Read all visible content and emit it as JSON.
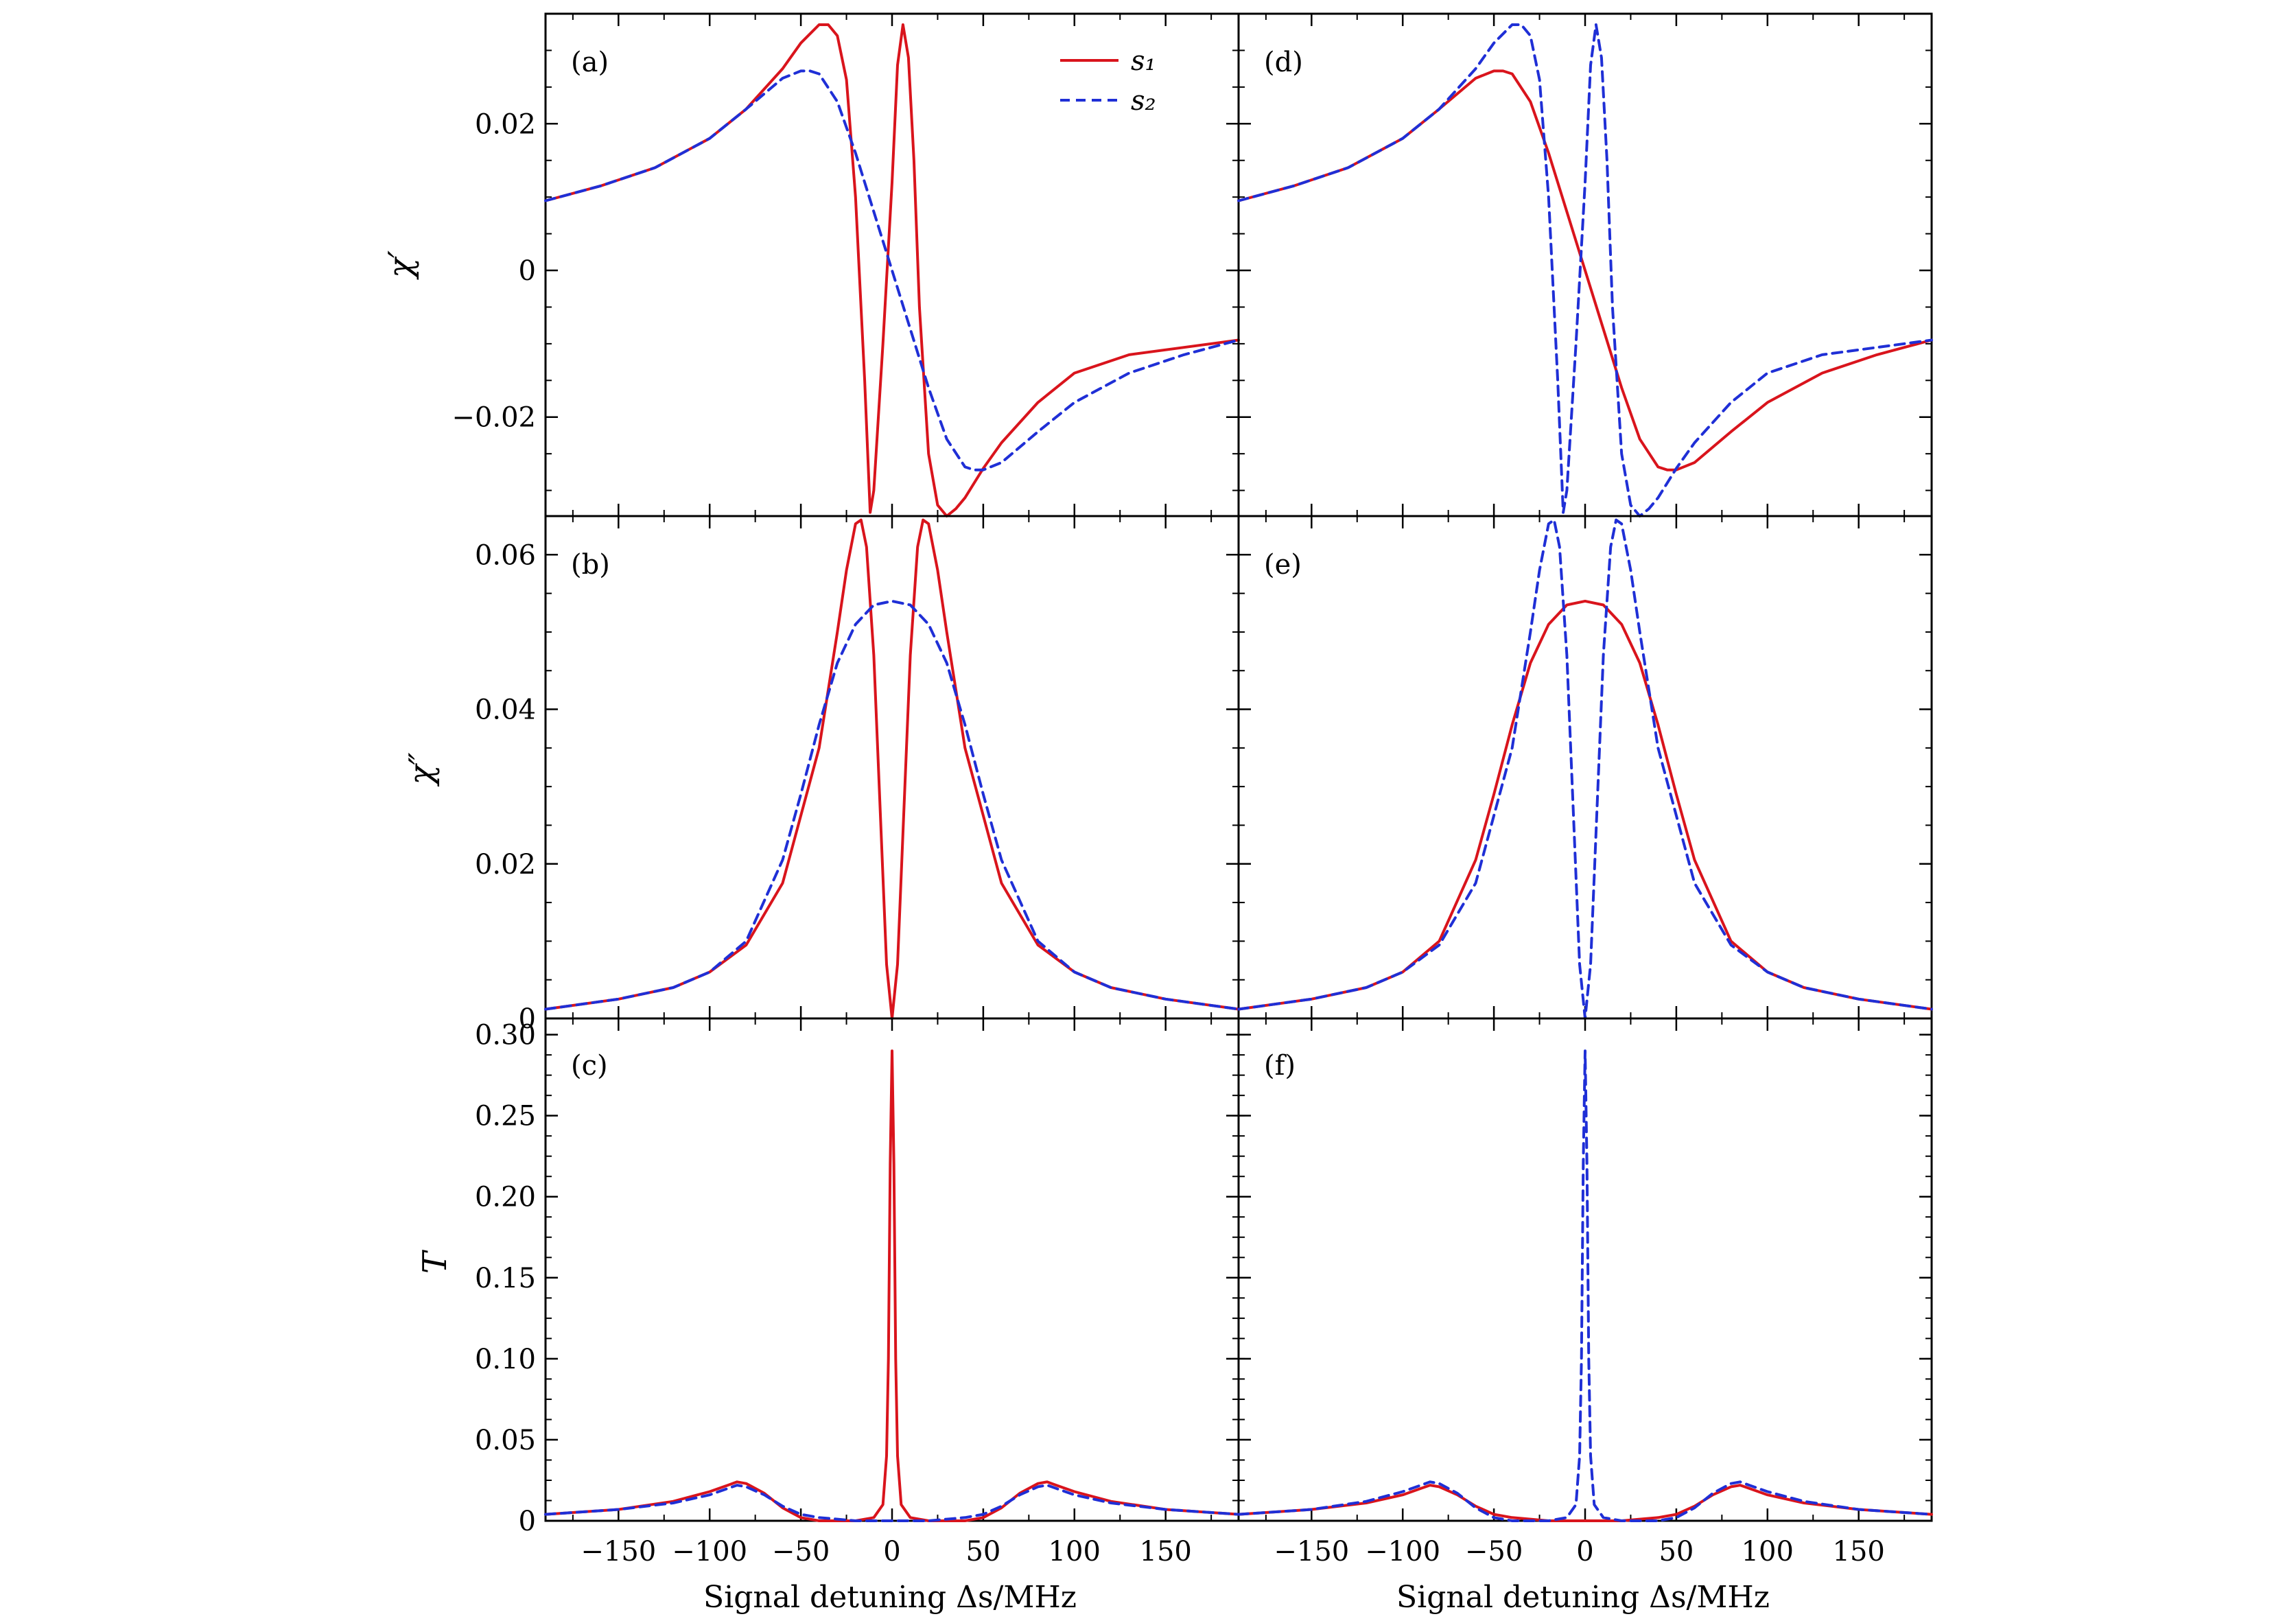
{
  "colors": {
    "s1": "#d9141c",
    "s2": "#1f2fd6",
    "frame": "#000000"
  },
  "legend": {
    "s1_label": "s₁",
    "s2_label": "s₂",
    "placement": "top-right of panel (a)"
  },
  "x_axis": {
    "label": "Signal detuning Δs/MHz",
    "ticks": [
      -150,
      -100,
      -50,
      0,
      50,
      100,
      150
    ],
    "tick_labels": [
      "−150",
      "−100",
      "−50",
      "0",
      "50",
      "100",
      "150"
    ],
    "range": [
      -190,
      190
    ]
  },
  "chart_data": [
    {
      "type": "line",
      "panel": "(a)",
      "ylabel": "χ′",
      "ylim": [
        -0.0335,
        0.035
      ],
      "yticks": [
        -0.02,
        0,
        0.02
      ],
      "ytick_labels": [
        "−0.02",
        "0",
        "0.02"
      ],
      "series": [
        {
          "name": "s₁",
          "style": "solid",
          "x": [
            -190,
            -160,
            -130,
            -100,
            -80,
            -60,
            -50,
            -40,
            -35,
            -30,
            -25,
            -20,
            -15,
            -12,
            -10,
            -5,
            0,
            3,
            6,
            9,
            12,
            15,
            20,
            25,
            30,
            35,
            40,
            50,
            60,
            80,
            100,
            130,
            160,
            190
          ],
          "y": [
            0.0095,
            0.0115,
            0.014,
            0.018,
            0.022,
            0.0275,
            0.031,
            0.0335,
            0.0335,
            0.032,
            0.026,
            0.01,
            -0.015,
            -0.033,
            -0.03,
            -0.01,
            0.012,
            0.028,
            0.0335,
            0.029,
            0.015,
            -0.005,
            -0.025,
            -0.032,
            -0.0335,
            -0.0325,
            -0.031,
            -0.027,
            -0.0235,
            -0.018,
            -0.014,
            -0.0115,
            -0.0105,
            -0.0095
          ]
        },
        {
          "name": "s₂",
          "style": "dashed",
          "x": [
            -190,
            -160,
            -130,
            -100,
            -80,
            -60,
            -50,
            -45,
            -40,
            -30,
            -20,
            -10,
            0,
            10,
            20,
            30,
            40,
            45,
            50,
            60,
            80,
            100,
            130,
            160,
            190
          ],
          "y": [
            0.0095,
            0.0115,
            0.014,
            0.018,
            0.022,
            0.0262,
            0.0272,
            0.0272,
            0.0268,
            0.023,
            0.016,
            0.008,
            0.0,
            -0.008,
            -0.016,
            -0.023,
            -0.0268,
            -0.0272,
            -0.0272,
            -0.0262,
            -0.022,
            -0.018,
            -0.014,
            -0.0115,
            -0.0095
          ]
        }
      ]
    },
    {
      "type": "line",
      "panel": "(b)",
      "ylabel": "χ″",
      "ylim": [
        0,
        0.065
      ],
      "yticks": [
        0,
        0.02,
        0.04,
        0.06
      ],
      "ytick_labels": [
        "0",
        "0.02",
        "0.04",
        "0.06"
      ],
      "series": [
        {
          "name": "s₁",
          "style": "solid",
          "x": [
            -190,
            -150,
            -120,
            -100,
            -80,
            -60,
            -40,
            -30,
            -25,
            -20,
            -17,
            -14,
            -10,
            -6,
            -3,
            0,
            3,
            6,
            10,
            14,
            17,
            20,
            25,
            30,
            40,
            60,
            80,
            100,
            120,
            150,
            190
          ],
          "y": [
            0.0012,
            0.0025,
            0.004,
            0.006,
            0.0095,
            0.0175,
            0.035,
            0.05,
            0.058,
            0.064,
            0.0645,
            0.061,
            0.047,
            0.024,
            0.007,
            0.0,
            0.007,
            0.024,
            0.047,
            0.061,
            0.0645,
            0.064,
            0.058,
            0.05,
            0.035,
            0.0175,
            0.0095,
            0.006,
            0.004,
            0.0025,
            0.0012
          ]
        },
        {
          "name": "s₂",
          "style": "dashed",
          "x": [
            -190,
            -150,
            -120,
            -100,
            -80,
            -60,
            -50,
            -40,
            -30,
            -20,
            -10,
            0,
            10,
            20,
            30,
            40,
            50,
            60,
            80,
            100,
            120,
            150,
            190
          ],
          "y": [
            0.0012,
            0.0025,
            0.004,
            0.006,
            0.01,
            0.0205,
            0.029,
            0.038,
            0.046,
            0.051,
            0.0535,
            0.054,
            0.0535,
            0.051,
            0.046,
            0.038,
            0.029,
            0.0205,
            0.01,
            0.006,
            0.004,
            0.0025,
            0.0012
          ]
        }
      ]
    },
    {
      "type": "line",
      "panel": "(c)",
      "ylabel": "T",
      "ylim": [
        0,
        0.31
      ],
      "yticks": [
        0,
        0.05,
        0.1,
        0.15,
        0.2,
        0.25,
        0.3
      ],
      "ytick_labels": [
        "0",
        "0.05",
        "0.10",
        "0.15",
        "0.20",
        "0.25",
        "0.30"
      ],
      "series": [
        {
          "name": "s₁",
          "style": "solid",
          "x": [
            -190,
            -150,
            -120,
            -100,
            -90,
            -85,
            -80,
            -70,
            -60,
            -50,
            -40,
            -30,
            -20,
            -10,
            -5,
            -3,
            -2,
            -1,
            0,
            1,
            2,
            3,
            5,
            10,
            20,
            30,
            40,
            50,
            60,
            70,
            80,
            85,
            90,
            100,
            120,
            150,
            190
          ],
          "y": [
            0.004,
            0.007,
            0.012,
            0.018,
            0.022,
            0.024,
            0.023,
            0.017,
            0.008,
            0.002,
            0.0,
            0.0,
            0.0,
            0.002,
            0.01,
            0.04,
            0.1,
            0.22,
            0.29,
            0.22,
            0.1,
            0.04,
            0.01,
            0.002,
            0.0,
            0.0,
            0.0,
            0.002,
            0.008,
            0.017,
            0.023,
            0.024,
            0.022,
            0.018,
            0.012,
            0.007,
            0.004
          ]
        },
        {
          "name": "s₂",
          "style": "dashed",
          "x": [
            -190,
            -150,
            -120,
            -100,
            -90,
            -85,
            -80,
            -70,
            -60,
            -50,
            -40,
            -30,
            -20,
            -10,
            0,
            10,
            20,
            30,
            40,
            50,
            60,
            70,
            80,
            85,
            90,
            100,
            120,
            150,
            190
          ],
          "y": [
            0.004,
            0.007,
            0.011,
            0.016,
            0.02,
            0.022,
            0.021,
            0.016,
            0.009,
            0.004,
            0.002,
            0.001,
            0.0,
            0.0,
            0.0,
            0.0,
            0.0,
            0.001,
            0.002,
            0.004,
            0.009,
            0.016,
            0.021,
            0.022,
            0.02,
            0.016,
            0.011,
            0.007,
            0.004
          ]
        }
      ]
    },
    {
      "type": "line",
      "panel": "(d)",
      "ylabel": "",
      "ylim": [
        -0.0335,
        0.035
      ],
      "yticks": [
        -0.02,
        0,
        0.02
      ],
      "ytick_labels": [
        "",
        "",
        ""
      ],
      "series": [
        {
          "name": "s₁",
          "style": "solid",
          "x": [
            -190,
            -160,
            -130,
            -100,
            -80,
            -60,
            -50,
            -45,
            -40,
            -30,
            -20,
            -10,
            0,
            10,
            20,
            30,
            40,
            45,
            50,
            60,
            80,
            100,
            130,
            160,
            190
          ],
          "y": [
            0.0095,
            0.0115,
            0.014,
            0.018,
            0.022,
            0.0262,
            0.0272,
            0.0272,
            0.0268,
            0.023,
            0.016,
            0.008,
            0.0,
            -0.008,
            -0.016,
            -0.023,
            -0.0268,
            -0.0272,
            -0.0272,
            -0.0262,
            -0.022,
            -0.018,
            -0.014,
            -0.0115,
            -0.0095
          ]
        },
        {
          "name": "s₂",
          "style": "dashed",
          "x": [
            -190,
            -160,
            -130,
            -100,
            -80,
            -60,
            -50,
            -40,
            -35,
            -30,
            -25,
            -20,
            -15,
            -12,
            -10,
            -5,
            0,
            3,
            6,
            9,
            12,
            15,
            20,
            25,
            30,
            35,
            40,
            50,
            60,
            80,
            100,
            130,
            160,
            190
          ],
          "y": [
            0.0095,
            0.0115,
            0.014,
            0.018,
            0.022,
            0.0275,
            0.031,
            0.0335,
            0.0335,
            0.032,
            0.026,
            0.01,
            -0.015,
            -0.033,
            -0.03,
            -0.01,
            0.012,
            0.028,
            0.0335,
            0.029,
            0.015,
            -0.005,
            -0.025,
            -0.032,
            -0.0335,
            -0.0325,
            -0.031,
            -0.027,
            -0.0235,
            -0.018,
            -0.014,
            -0.0115,
            -0.0105,
            -0.0095
          ]
        }
      ]
    },
    {
      "type": "line",
      "panel": "(e)",
      "ylabel": "",
      "ylim": [
        0,
        0.065
      ],
      "yticks": [
        0,
        0.02,
        0.04,
        0.06
      ],
      "ytick_labels": [
        "",
        "",
        "",
        ""
      ],
      "series": [
        {
          "name": "s₁",
          "style": "solid",
          "x": [
            -190,
            -150,
            -120,
            -100,
            -80,
            -60,
            -50,
            -40,
            -30,
            -20,
            -10,
            0,
            10,
            20,
            30,
            40,
            50,
            60,
            80,
            100,
            120,
            150,
            190
          ],
          "y": [
            0.0012,
            0.0025,
            0.004,
            0.006,
            0.01,
            0.0205,
            0.029,
            0.038,
            0.046,
            0.051,
            0.0535,
            0.054,
            0.0535,
            0.051,
            0.046,
            0.038,
            0.029,
            0.0205,
            0.01,
            0.006,
            0.004,
            0.0025,
            0.0012
          ]
        },
        {
          "name": "s₂",
          "style": "dashed",
          "x": [
            -190,
            -150,
            -120,
            -100,
            -80,
            -60,
            -40,
            -30,
            -25,
            -20,
            -17,
            -14,
            -10,
            -6,
            -3,
            0,
            3,
            6,
            10,
            14,
            17,
            20,
            25,
            30,
            40,
            60,
            80,
            100,
            120,
            150,
            190
          ],
          "y": [
            0.0012,
            0.0025,
            0.004,
            0.006,
            0.0095,
            0.0175,
            0.035,
            0.05,
            0.058,
            0.064,
            0.0645,
            0.061,
            0.047,
            0.024,
            0.007,
            0.0,
            0.007,
            0.024,
            0.047,
            0.061,
            0.0645,
            0.064,
            0.058,
            0.05,
            0.035,
            0.0175,
            0.0095,
            0.006,
            0.004,
            0.0025,
            0.0012
          ]
        }
      ]
    },
    {
      "type": "line",
      "panel": "(f)",
      "ylabel": "",
      "ylim": [
        0,
        0.31
      ],
      "yticks": [
        0,
        0.05,
        0.1,
        0.15,
        0.2,
        0.25,
        0.3
      ],
      "ytick_labels": [
        "",
        "",
        "",
        "",
        "",
        "",
        ""
      ],
      "series": [
        {
          "name": "s₁",
          "style": "solid",
          "x": [
            -190,
            -150,
            -120,
            -100,
            -90,
            -85,
            -80,
            -70,
            -60,
            -50,
            -40,
            -30,
            -20,
            -10,
            0,
            10,
            20,
            30,
            40,
            50,
            60,
            70,
            80,
            85,
            90,
            100,
            120,
            150,
            190
          ],
          "y": [
            0.004,
            0.007,
            0.011,
            0.016,
            0.02,
            0.022,
            0.021,
            0.016,
            0.009,
            0.004,
            0.002,
            0.001,
            0.0,
            0.0,
            0.0,
            0.0,
            0.0,
            0.001,
            0.002,
            0.004,
            0.009,
            0.016,
            0.021,
            0.022,
            0.02,
            0.016,
            0.011,
            0.007,
            0.004
          ]
        },
        {
          "name": "s₂",
          "style": "dashed",
          "x": [
            -190,
            -150,
            -120,
            -100,
            -90,
            -85,
            -80,
            -70,
            -60,
            -50,
            -40,
            -30,
            -20,
            -10,
            -5,
            -3,
            -2,
            -1,
            0,
            1,
            2,
            3,
            5,
            10,
            20,
            30,
            40,
            50,
            60,
            70,
            80,
            85,
            90,
            100,
            120,
            150,
            190
          ],
          "y": [
            0.004,
            0.007,
            0.012,
            0.018,
            0.022,
            0.024,
            0.023,
            0.017,
            0.008,
            0.002,
            0.0,
            0.0,
            0.0,
            0.002,
            0.01,
            0.04,
            0.1,
            0.22,
            0.29,
            0.22,
            0.1,
            0.04,
            0.01,
            0.002,
            0.0,
            0.0,
            0.0,
            0.002,
            0.008,
            0.017,
            0.023,
            0.024,
            0.022,
            0.018,
            0.012,
            0.007,
            0.004
          ]
        }
      ]
    }
  ]
}
